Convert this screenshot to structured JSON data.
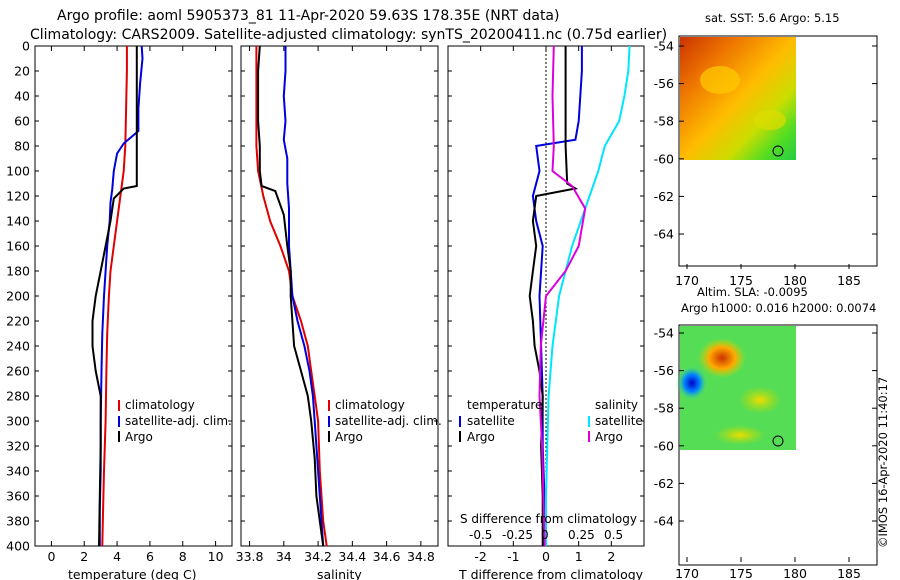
{
  "titles": {
    "line1": "Argo profile: aoml 5905373_81 11-Apr-2020 59.63S 178.35E (NRT data)",
    "line2": "Climatology: CARS2009. Satellite-adjusted climatology: synTS_20200411.nc (0.75d earlier)"
  },
  "colors": {
    "climatology": "#e00000",
    "satellite": "#0000dd",
    "argo": "#000000",
    "s_satellite": "#00e5ff",
    "s_argo": "#dd00dd"
  },
  "chart_data": [
    {
      "type": "line",
      "panel": "temperature",
      "xlabel": "temperature (deg C)",
      "xlim": [
        -1,
        11
      ],
      "xticks": [
        "0",
        "2",
        "4",
        "6",
        "8",
        "10"
      ],
      "ylim": [
        400,
        0
      ],
      "yticks": [
        "0",
        "20",
        "40",
        "60",
        "80",
        "100",
        "120",
        "140",
        "160",
        "180",
        "200",
        "220",
        "240",
        "260",
        "280",
        "300",
        "320",
        "340",
        "360",
        "380",
        "400"
      ],
      "legend": [
        "climatology",
        "satellite-adj. clim.",
        "Argo"
      ],
      "series": [
        {
          "name": "climatology",
          "color_key": "climatology",
          "points": [
            [
              4.6,
              0
            ],
            [
              4.6,
              20
            ],
            [
              4.55,
              50
            ],
            [
              4.5,
              80
            ],
            [
              4.4,
              100
            ],
            [
              4.2,
              120
            ],
            [
              4.0,
              140
            ],
            [
              3.8,
              160
            ],
            [
              3.6,
              180
            ],
            [
              3.5,
              200
            ],
            [
              3.4,
              230
            ],
            [
              3.35,
              260
            ],
            [
              3.3,
              300
            ],
            [
              3.2,
              340
            ],
            [
              3.15,
              370
            ],
            [
              3.1,
              400
            ]
          ]
        },
        {
          "name": "satellite-adj. clim.",
          "color_key": "satellite",
          "points": [
            [
              5.5,
              0
            ],
            [
              5.55,
              10
            ],
            [
              5.4,
              30
            ],
            [
              5.3,
              50
            ],
            [
              5.3,
              68
            ],
            [
              4.4,
              78
            ],
            [
              4.0,
              86
            ],
            [
              3.8,
              100
            ],
            [
              3.7,
              115
            ],
            [
              3.6,
              125
            ],
            [
              3.55,
              140
            ],
            [
              3.4,
              160
            ],
            [
              3.3,
              180
            ],
            [
              3.2,
              200
            ],
            [
              3.1,
              230
            ],
            [
              3.05,
              260
            ],
            [
              3.0,
              300
            ],
            [
              3.0,
              340
            ],
            [
              2.95,
              370
            ],
            [
              2.95,
              400
            ]
          ]
        },
        {
          "name": "Argo",
          "color_key": "argo",
          "points": [
            [
              5.2,
              0
            ],
            [
              5.2,
              40
            ],
            [
              5.2,
              72
            ],
            [
              5.2,
              112
            ],
            [
              4.4,
              114
            ],
            [
              3.8,
              122
            ],
            [
              3.6,
              140
            ],
            [
              3.3,
              160
            ],
            [
              3.0,
              180
            ],
            [
              2.7,
              200
            ],
            [
              2.5,
              220
            ],
            [
              2.5,
              240
            ],
            [
              2.7,
              260
            ],
            [
              3.0,
              280
            ],
            [
              3.0,
              320
            ],
            [
              2.95,
              360
            ],
            [
              2.9,
              400
            ]
          ]
        }
      ]
    },
    {
      "type": "line",
      "panel": "salinity",
      "xlabel": "salinity",
      "xlim": [
        33.75,
        34.9
      ],
      "xticks": [
        "33.8",
        "34",
        "34.2",
        "34.4",
        "34.6",
        "34.8"
      ],
      "ylim": [
        400,
        0
      ],
      "legend": [
        "climatology",
        "satellite-adj. clim.",
        "Argo"
      ],
      "series": [
        {
          "name": "climatology",
          "color_key": "climatology",
          "points": [
            [
              33.84,
              0
            ],
            [
              33.84,
              40
            ],
            [
              33.84,
              80
            ],
            [
              33.85,
              100
            ],
            [
              33.88,
              120
            ],
            [
              33.92,
              140
            ],
            [
              33.98,
              160
            ],
            [
              34.03,
              180
            ],
            [
              34.05,
              200
            ],
            [
              34.1,
              220
            ],
            [
              34.14,
              240
            ],
            [
              34.16,
              260
            ],
            [
              34.18,
              280
            ],
            [
              34.2,
              300
            ],
            [
              34.21,
              340
            ],
            [
              34.23,
              380
            ],
            [
              34.25,
              400
            ]
          ]
        },
        {
          "name": "satellite-adj. clim.",
          "color_key": "satellite",
          "points": [
            [
              34.01,
              0
            ],
            [
              34.01,
              20
            ],
            [
              34.0,
              40
            ],
            [
              34.01,
              60
            ],
            [
              34.0,
              75
            ],
            [
              34.02,
              90
            ],
            [
              34.02,
              110
            ],
            [
              34.03,
              130
            ],
            [
              34.03,
              160
            ],
            [
              34.04,
              180
            ],
            [
              34.05,
              200
            ],
            [
              34.08,
              220
            ],
            [
              34.12,
              240
            ],
            [
              34.15,
              260
            ],
            [
              34.17,
              280
            ],
            [
              34.18,
              300
            ],
            [
              34.2,
              340
            ],
            [
              34.22,
              380
            ],
            [
              34.23,
              400
            ]
          ]
        },
        {
          "name": "Argo",
          "color_key": "argo",
          "points": [
            [
              33.86,
              0
            ],
            [
              33.85,
              20
            ],
            [
              33.85,
              40
            ],
            [
              33.85,
              60
            ],
            [
              33.86,
              80
            ],
            [
              33.86,
              100
            ],
            [
              33.87,
              112
            ],
            [
              33.95,
              116
            ],
            [
              34.0,
              135
            ],
            [
              34.02,
              160
            ],
            [
              34.04,
              180
            ],
            [
              34.04,
              200
            ],
            [
              34.05,
              220
            ],
            [
              34.06,
              240
            ],
            [
              34.1,
              260
            ],
            [
              34.14,
              280
            ],
            [
              34.16,
              300
            ],
            [
              34.18,
              330
            ],
            [
              34.19,
              360
            ],
            [
              34.21,
              380
            ],
            [
              34.23,
              400
            ]
          ]
        }
      ]
    },
    {
      "type": "line",
      "panel": "difference",
      "xlabel": "T difference from climatology",
      "xlim": [
        -3,
        3
      ],
      "xticks": [
        "-2",
        "-1",
        "0",
        "1",
        "2"
      ],
      "secondary_xlabel": "S difference from climatology",
      "secondary_xticks": [
        "-0.5",
        "-0.25",
        "0",
        "0.25",
        "0.5"
      ],
      "ylim": [
        400,
        0
      ],
      "legend_temperature": {
        "heading": "temperature",
        "items": [
          "satellite",
          "Argo"
        ]
      },
      "legend_salinity": {
        "heading": "salinity",
        "items": [
          "satellite",
          "Argo"
        ]
      },
      "series": [
        {
          "name": "temperature satellite",
          "color_key": "satellite",
          "points": [
            [
              1.1,
              0
            ],
            [
              1.1,
              20
            ],
            [
              1.05,
              40
            ],
            [
              1.0,
              60
            ],
            [
              0.9,
              75
            ],
            [
              -0.3,
              80
            ],
            [
              -0.2,
              100
            ],
            [
              -0.4,
              120
            ],
            [
              -0.3,
              140
            ],
            [
              -0.1,
              160
            ],
            [
              -0.2,
              200
            ],
            [
              -0.15,
              240
            ],
            [
              -0.1,
              280
            ],
            [
              -0.1,
              320
            ],
            [
              -0.05,
              360
            ],
            [
              -0.05,
              400
            ]
          ]
        },
        {
          "name": "temperature Argo",
          "color_key": "argo",
          "points": [
            [
              0.6,
              0
            ],
            [
              0.6,
              40
            ],
            [
              0.6,
              80
            ],
            [
              0.65,
              110
            ],
            [
              0.9,
              114
            ],
            [
              -0.3,
              120
            ],
            [
              -0.4,
              140
            ],
            [
              -0.3,
              160
            ],
            [
              -0.4,
              180
            ],
            [
              -0.5,
              200
            ],
            [
              -0.4,
              220
            ],
            [
              -0.35,
              240
            ],
            [
              -0.2,
              260
            ],
            [
              -0.1,
              280
            ],
            [
              -0.15,
              320
            ],
            [
              -0.1,
              360
            ],
            [
              -0.1,
              400
            ]
          ]
        },
        {
          "name": "salinity satellite",
          "color_key": "s_satellite",
          "points": [
            [
              0.64,
              0
            ],
            [
              0.63,
              20
            ],
            [
              0.6,
              40
            ],
            [
              0.56,
              60
            ],
            [
              0.45,
              80
            ],
            [
              0.4,
              100
            ],
            [
              0.3,
              130
            ],
            [
              0.2,
              160
            ],
            [
              0.1,
              200
            ],
            [
              0.05,
              240
            ],
            [
              0.02,
              280
            ],
            [
              0.01,
              320
            ],
            [
              0.0,
              360
            ],
            [
              0.0,
              400
            ]
          ]
        },
        {
          "name": "salinity Argo",
          "color_key": "s_argo",
          "points": [
            [
              0.06,
              0
            ],
            [
              0.05,
              40
            ],
            [
              0.06,
              80
            ],
            [
              0.05,
              100
            ],
            [
              0.2,
              112
            ],
            [
              0.3,
              130
            ],
            [
              0.25,
              160
            ],
            [
              0.15,
              180
            ],
            [
              0.0,
              200
            ],
            [
              -0.04,
              240
            ],
            [
              -0.05,
              280
            ],
            [
              -0.03,
              320
            ],
            [
              -0.02,
              360
            ],
            [
              -0.01,
              400
            ]
          ]
        }
      ]
    }
  ],
  "maps": {
    "top": {
      "title": "sat. SST: 5.6 Argo: 5.15",
      "yticks": [
        "-54",
        "-56",
        "-58",
        "-60",
        "-62",
        "-64"
      ],
      "xticks": [
        "170",
        "175",
        "180",
        "185"
      ]
    },
    "bottom": {
      "title1": "Altim. SLA: -0.0095",
      "title2": "Argo h1000: 0.016 h2000: 0.0074",
      "yticks": [
        "-54",
        "-56",
        "-58",
        "-60",
        "-62",
        "-64"
      ],
      "xticks": [
        "170",
        "175",
        "180",
        "185"
      ]
    }
  },
  "credit": "©IMOS 16-Apr-2020 11:40:17"
}
